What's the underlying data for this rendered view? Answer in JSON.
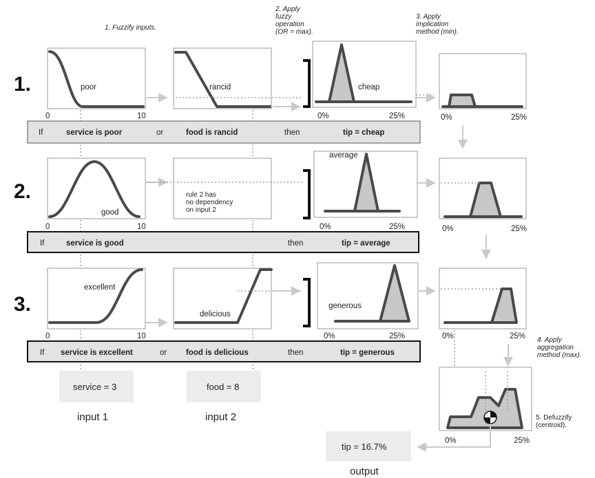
{
  "steps": {
    "fuzzify": "1. Fuzzify inputs.",
    "apply_op": [
      "2. Apply",
      "fuzzy",
      "operation",
      "(OR = max)."
    ],
    "implication": [
      "3. Apply",
      "implication",
      "method (min)."
    ],
    "aggregation": [
      "4. Apply",
      "aggregation",
      "method (max)."
    ],
    "defuzzify": [
      "5. Defuzzify",
      "(centroid)."
    ]
  },
  "rules": [
    {
      "number": "1.",
      "mf1_label": "poor",
      "mf2_label": "rancid",
      "out_label": "cheap",
      "parts": [
        "If",
        "service is poor",
        "or",
        "food is rancid",
        "then",
        "tip = cheap"
      ]
    },
    {
      "number": "2.",
      "mf1_label": "good",
      "mf2_note": [
        "rule 2 has",
        "no dependency",
        "on input 2"
      ],
      "out_label": "average",
      "parts": [
        "If",
        "service is good",
        "then",
        "tip = average"
      ]
    },
    {
      "number": "3.",
      "mf1_label": "excellent",
      "mf2_label": "delicious",
      "out_label": "generous",
      "parts": [
        "If",
        "service is excellent",
        "or",
        "food is delicious",
        "then",
        "tip = generous"
      ]
    }
  ],
  "ticks": {
    "input_min": "0",
    "input_max": "10",
    "output_min": "0%",
    "output_max": "25%"
  },
  "inputs": {
    "service_value": "service = 3",
    "service_caption": "input 1",
    "food_value": "food = 8",
    "food_caption": "input 2"
  },
  "output": {
    "value": "tip = 16.7%",
    "caption": "output"
  }
}
